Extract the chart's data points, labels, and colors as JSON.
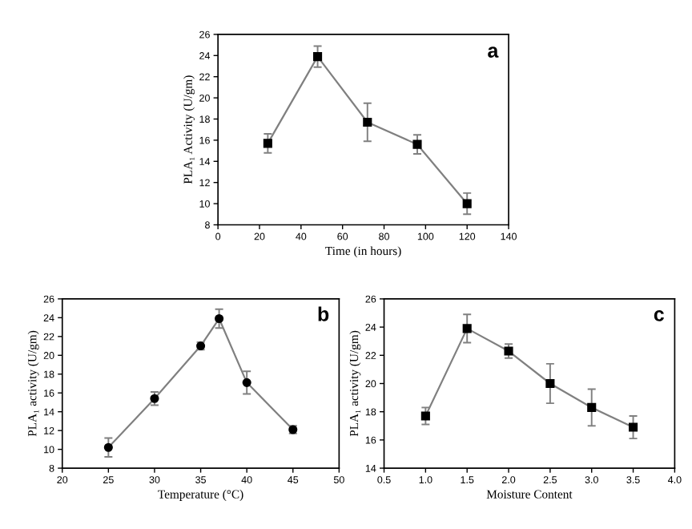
{
  "chart_data": [
    {
      "type": "line",
      "xlabel": "Time (in hours)",
      "ylabel": "PLA₁ Activity (U/gm)",
      "annotations": [
        "a"
      ],
      "marker": "square",
      "grid": false,
      "legend": false,
      "x": [
        24,
        48,
        72,
        96,
        120
      ],
      "xlim": [
        0,
        140
      ],
      "xticks": [
        0,
        20,
        40,
        60,
        80,
        100,
        120,
        140
      ],
      "ylim": [
        8,
        26
      ],
      "yticks": [
        8,
        10,
        12,
        14,
        16,
        18,
        20,
        22,
        24,
        26
      ],
      "series": [
        {
          "color": "#808080",
          "values": [
            15.7,
            23.9,
            17.7,
            15.6,
            10.0
          ],
          "errors": [
            0.9,
            1.0,
            1.8,
            0.9,
            1.0
          ]
        }
      ]
    },
    {
      "type": "line",
      "xlabel": "Temperature (°C)",
      "ylabel": "PLA₁ activity (U/gm)",
      "annotations": [
        "b"
      ],
      "marker": "circle",
      "grid": false,
      "legend": false,
      "x": [
        25,
        30,
        35,
        37,
        40,
        45
      ],
      "xlim": [
        20,
        50
      ],
      "xticks": [
        20,
        25,
        30,
        35,
        40,
        45,
        50
      ],
      "ylim": [
        8,
        26
      ],
      "yticks": [
        8,
        10,
        12,
        14,
        16,
        18,
        20,
        22,
        24,
        26
      ],
      "series": [
        {
          "color": "#808080",
          "values": [
            10.2,
            15.4,
            21.0,
            23.9,
            17.1,
            12.1
          ],
          "errors": [
            1.0,
            0.7,
            0.4,
            1.0,
            1.2,
            0.4
          ]
        }
      ]
    },
    {
      "type": "line",
      "xlabel": "Moisture Content",
      "ylabel": "PLA₁ activity (U/gm)",
      "annotations": [
        "c"
      ],
      "marker": "square",
      "grid": false,
      "legend": false,
      "x": [
        1.0,
        1.5,
        2.0,
        2.5,
        3.0,
        3.5
      ],
      "xlim": [
        0.5,
        4.0
      ],
      "xticks": [
        {
          "value": 0.5,
          "label": "0.5"
        },
        {
          "value": 1,
          "label": "1.0"
        },
        {
          "value": 1.5,
          "label": "1.5"
        },
        {
          "value": 2,
          "label": "2.0"
        },
        {
          "value": 2.5,
          "label": "2.5"
        },
        {
          "value": 3,
          "label": "3.0"
        },
        {
          "value": 3.5,
          "label": "3.5"
        },
        {
          "value": 4,
          "label": "4.0"
        }
      ],
      "ylim": [
        14,
        26
      ],
      "yticks": [
        14,
        16,
        18,
        20,
        22,
        24,
        26
      ],
      "series": [
        {
          "color": "#808080",
          "values": [
            17.7,
            23.9,
            22.3,
            20.0,
            18.3,
            16.9
          ],
          "errors": [
            0.6,
            1.0,
            0.5,
            1.4,
            1.3,
            0.8
          ]
        }
      ]
    }
  ]
}
